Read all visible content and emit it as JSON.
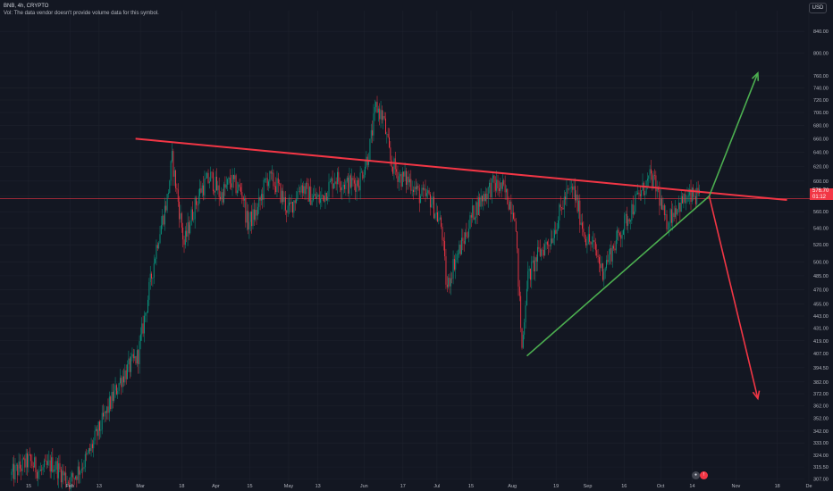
{
  "header": {
    "symbol_line": "BNB, 4h, CRYPTO",
    "volume_note": "Vol: The data vendor doesn't provide volume data for this symbol."
  },
  "currency_button": "USD",
  "price_badge": {
    "price": "576.70",
    "timer": "01:12"
  },
  "colors": {
    "background": "#131722",
    "up": "#089981",
    "down": "#f23645",
    "resistance_line": "#f23645",
    "support_line": "#4caf50",
    "bull_arrow": "#4caf50",
    "bear_arrow": "#f23645",
    "current_price_line": "#f23645"
  },
  "icons": [
    "tradingview-badge-icon"
  ],
  "chart_data": {
    "type": "candlestick",
    "symbol": "BNB",
    "timeframe": "4h",
    "y_scale": "log",
    "ylim": [
      305,
      880
    ],
    "current_price": 576.7,
    "y_ticks": [
      "840.00",
      "800.00",
      "760.00",
      "740.00",
      "720.00",
      "700.00",
      "680.00",
      "660.00",
      "640.00",
      "620.00",
      "600.00",
      "580.00",
      "560.00",
      "540.00",
      "520.00",
      "500.00",
      "485.00",
      "470.00",
      "455.00",
      "443.00",
      "431.00",
      "419.00",
      "407.00",
      "394.50",
      "382.00",
      "372.00",
      "362.00",
      "352.00",
      "342.00",
      "333.00",
      "324.00",
      "315.50",
      "307.00"
    ],
    "x_ticks": [
      "15",
      "Feb",
      "13",
      "Mar",
      "18",
      "Apr",
      "15",
      "May",
      "13",
      "Jun",
      "17",
      "Jul",
      "15",
      "Aug",
      "19",
      "Sep",
      "16",
      "Oct",
      "14",
      "Nov",
      "18",
      "De"
    ],
    "price_path": [
      {
        "date": "2024-01-08",
        "price": 310
      },
      {
        "date": "2024-01-15",
        "price": 320
      },
      {
        "date": "2024-01-20",
        "price": 312
      },
      {
        "date": "2024-01-25",
        "price": 318
      },
      {
        "date": "2024-02-01",
        "price": 305
      },
      {
        "date": "2024-02-08",
        "price": 322
      },
      {
        "date": "2024-02-15",
        "price": 352
      },
      {
        "date": "2024-02-22",
        "price": 385
      },
      {
        "date": "2024-02-29",
        "price": 405
      },
      {
        "date": "2024-03-04",
        "price": 460
      },
      {
        "date": "2024-03-08",
        "price": 525
      },
      {
        "date": "2024-03-12",
        "price": 575
      },
      {
        "date": "2024-03-14",
        "price": 630
      },
      {
        "date": "2024-03-16",
        "price": 585
      },
      {
        "date": "2024-03-19",
        "price": 520
      },
      {
        "date": "2024-03-22",
        "price": 555
      },
      {
        "date": "2024-03-26",
        "price": 590
      },
      {
        "date": "2024-03-30",
        "price": 605
      },
      {
        "date": "2024-04-03",
        "price": 580
      },
      {
        "date": "2024-04-07",
        "price": 600
      },
      {
        "date": "2024-04-12",
        "price": 585
      },
      {
        "date": "2024-04-14",
        "price": 545
      },
      {
        "date": "2024-04-18",
        "price": 560
      },
      {
        "date": "2024-04-22",
        "price": 605
      },
      {
        "date": "2024-04-26",
        "price": 595
      },
      {
        "date": "2024-05-01",
        "price": 560
      },
      {
        "date": "2024-05-06",
        "price": 595
      },
      {
        "date": "2024-05-10",
        "price": 580
      },
      {
        "date": "2024-05-14",
        "price": 575
      },
      {
        "date": "2024-05-20",
        "price": 605
      },
      {
        "date": "2024-05-25",
        "price": 595
      },
      {
        "date": "2024-05-30",
        "price": 600
      },
      {
        "date": "2024-06-03",
        "price": 640
      },
      {
        "date": "2024-06-06",
        "price": 710
      },
      {
        "date": "2024-06-09",
        "price": 690
      },
      {
        "date": "2024-06-12",
        "price": 625
      },
      {
        "date": "2024-06-16",
        "price": 605
      },
      {
        "date": "2024-06-20",
        "price": 600
      },
      {
        "date": "2024-06-24",
        "price": 580
      },
      {
        "date": "2024-06-28",
        "price": 578
      },
      {
        "date": "2024-07-03",
        "price": 540
      },
      {
        "date": "2024-07-05",
        "price": 470
      },
      {
        "date": "2024-07-08",
        "price": 500
      },
      {
        "date": "2024-07-12",
        "price": 525
      },
      {
        "date": "2024-07-16",
        "price": 560
      },
      {
        "date": "2024-07-20",
        "price": 580
      },
      {
        "date": "2024-07-24",
        "price": 595
      },
      {
        "date": "2024-07-28",
        "price": 590
      },
      {
        "date": "2024-08-02",
        "price": 560
      },
      {
        "date": "2024-08-05",
        "price": 410
      },
      {
        "date": "2024-08-07",
        "price": 480
      },
      {
        "date": "2024-08-12",
        "price": 510
      },
      {
        "date": "2024-08-17",
        "price": 528
      },
      {
        "date": "2024-08-23",
        "price": 580
      },
      {
        "date": "2024-08-26",
        "price": 590
      },
      {
        "date": "2024-08-31",
        "price": 530
      },
      {
        "date": "2024-09-04",
        "price": 515
      },
      {
        "date": "2024-09-07",
        "price": 490
      },
      {
        "date": "2024-09-12",
        "price": 520
      },
      {
        "date": "2024-09-17",
        "price": 550
      },
      {
        "date": "2024-09-21",
        "price": 575
      },
      {
        "date": "2024-09-27",
        "price": 605
      },
      {
        "date": "2024-09-30",
        "price": 585
      },
      {
        "date": "2024-10-03",
        "price": 545
      },
      {
        "date": "2024-10-07",
        "price": 565
      },
      {
        "date": "2024-10-11",
        "price": 575
      },
      {
        "date": "2024-10-15",
        "price": 580
      },
      {
        "date": "2024-10-17",
        "price": 576.7
      }
    ],
    "drawings": {
      "resistance_trendline": {
        "from": {
          "date": "2024-02-28",
          "price": 660
        },
        "to": {
          "date": "2024-11-22",
          "price": 575
        }
      },
      "support_trendline": {
        "from": {
          "date": "2024-08-07",
          "price": 405
        },
        "to": {
          "date": "2024-10-21",
          "price": 580
        }
      },
      "bullish_arrow": {
        "from": {
          "date": "2024-10-21",
          "price": 580
        },
        "to": {
          "date": "2024-11-10",
          "price": 765
        }
      },
      "bearish_arrow": {
        "from": {
          "date": "2024-10-21",
          "price": 580
        },
        "to": {
          "date": "2024-11-10",
          "price": 368
        }
      }
    }
  }
}
